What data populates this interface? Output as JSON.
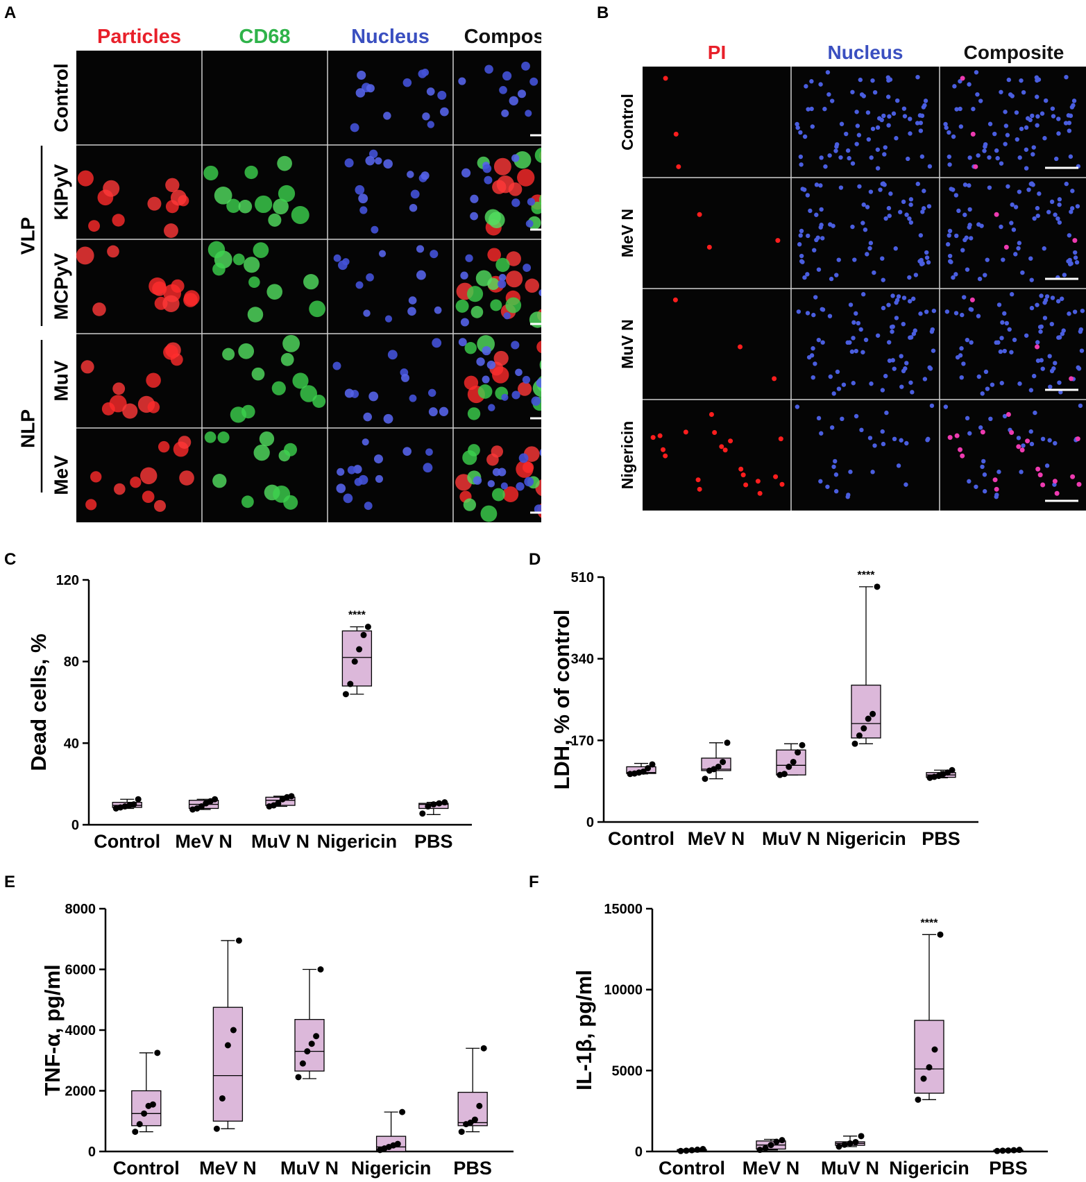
{
  "colors": {
    "red": "#e8202a",
    "green": "#2fb34a",
    "blue": "#3a4fc0",
    "black": "#111111",
    "box_fill": "#dcb8da",
    "micro_bg": "#050505"
  },
  "panelA": {
    "label": "A",
    "columns": [
      "Particles",
      "CD68",
      "Nucleus",
      "Composite"
    ],
    "rows": [
      "Control",
      "KIPyV",
      "MCPyV",
      "MuV",
      "MeV"
    ],
    "group_vlp": "VLP",
    "group_nlp": "NLP"
  },
  "panelB": {
    "label": "B",
    "columns": [
      "PI",
      "Nucleus",
      "Composite"
    ],
    "rows": [
      "Control",
      "MeV N",
      "MuV N",
      "Nigericin"
    ]
  },
  "chart_data": [
    {
      "panel": "C",
      "type": "box",
      "ylabel": "Dead cells, %",
      "ylim": [
        0,
        120
      ],
      "yticks": [
        0,
        40,
        80,
        120
      ],
      "categories": [
        "Control",
        "MeV N",
        "MuV N",
        "Nigericin",
        "PBS"
      ],
      "boxes": [
        {
          "min": 8,
          "q1": 8.5,
          "median": 9.5,
          "q3": 11,
          "max": 12.5,
          "points": [
            8,
            8.5,
            9,
            9.5,
            10,
            12.5
          ]
        },
        {
          "min": 7.5,
          "q1": 8,
          "median": 10,
          "q3": 12,
          "max": 12.5,
          "points": [
            7.5,
            8,
            9,
            10.5,
            11.5,
            12.5
          ]
        },
        {
          "min": 9,
          "q1": 9.5,
          "median": 12,
          "q3": 13.5,
          "max": 14,
          "points": [
            9,
            9.5,
            10.5,
            12.5,
            13.5,
            14
          ]
        },
        {
          "min": 64,
          "q1": 68,
          "median": 82,
          "q3": 95,
          "max": 97,
          "points": [
            64,
            69,
            80,
            86,
            93,
            97
          ]
        },
        {
          "min": 5,
          "q1": 8,
          "median": 10,
          "q3": 10.5,
          "max": 11,
          "points": [
            5.5,
            9,
            10,
            10.5,
            11
          ]
        }
      ],
      "annotation": {
        "category": "Nigericin",
        "text": "****"
      }
    },
    {
      "panel": "D",
      "type": "box",
      "ylabel": "LDH, % of control",
      "ylim": [
        0,
        510
      ],
      "yticks": [
        0,
        170,
        340,
        510
      ],
      "categories": [
        "Control",
        "MeV N",
        "MuV N",
        "Nigericin",
        "PBS"
      ],
      "boxes": [
        {
          "min": 100,
          "q1": 101,
          "median": 103,
          "q3": 115,
          "max": 122,
          "points": [
            100,
            101,
            103,
            105,
            112,
            120
          ]
        },
        {
          "min": 90,
          "q1": 107,
          "median": 110,
          "q3": 133,
          "max": 165,
          "points": [
            90,
            107,
            110,
            115,
            125,
            165
          ]
        },
        {
          "min": 98,
          "q1": 98,
          "median": 118,
          "q3": 150,
          "max": 163,
          "points": [
            98,
            100,
            115,
            125,
            145,
            160
          ]
        },
        {
          "min": 163,
          "q1": 175,
          "median": 205,
          "q3": 285,
          "max": 490,
          "points": [
            163,
            180,
            195,
            215,
            225,
            490
          ]
        },
        {
          "min": 92,
          "q1": 93,
          "median": 98,
          "q3": 103,
          "max": 108,
          "points": [
            92,
            94,
            96,
            100,
            103,
            108
          ]
        }
      ],
      "annotation": {
        "category": "Nigericin",
        "text": "****"
      }
    },
    {
      "panel": "E",
      "type": "box",
      "ylabel": "TNF-α, pg/ml",
      "ylim": [
        0,
        8000
      ],
      "yticks": [
        0,
        2000,
        4000,
        6000,
        8000
      ],
      "categories": [
        "Control",
        "MeV N",
        "MuV N",
        "Nigericin",
        "PBS"
      ],
      "boxes": [
        {
          "min": 650,
          "q1": 850,
          "median": 1250,
          "q3": 2000,
          "max": 3250,
          "points": [
            650,
            900,
            1250,
            1500,
            1550,
            3250
          ]
        },
        {
          "min": 750,
          "q1": 1000,
          "median": 2500,
          "q3": 4750,
          "max": 6950,
          "points": [
            750,
            1750,
            3500,
            4000,
            6950
          ]
        },
        {
          "min": 2400,
          "q1": 2650,
          "median": 3300,
          "q3": 4350,
          "max": 6000,
          "points": [
            2450,
            2900,
            3300,
            3550,
            3800,
            6000
          ]
        },
        {
          "min": 0,
          "q1": 0,
          "median": 150,
          "q3": 500,
          "max": 1300,
          "points": [
            50,
            100,
            150,
            200,
            250,
            1300
          ]
        },
        {
          "min": 650,
          "q1": 850,
          "median": 950,
          "q3": 1950,
          "max": 3400,
          "points": [
            650,
            900,
            950,
            1050,
            1500,
            3400
          ]
        }
      ]
    },
    {
      "panel": "F",
      "type": "box",
      "ylabel": "IL-1β, pg/ml",
      "ylim": [
        0,
        15000
      ],
      "yticks": [
        0,
        5000,
        10000,
        15000
      ],
      "categories": [
        "Control",
        "MeV N",
        "MuV N",
        "Nigericin",
        "PBS"
      ],
      "boxes": [
        {
          "min": 30,
          "q1": 40,
          "median": 80,
          "q3": 120,
          "max": 150,
          "points": [
            30,
            50,
            80,
            110,
            150
          ]
        },
        {
          "min": 100,
          "q1": 150,
          "median": 400,
          "q3": 650,
          "max": 750,
          "points": [
            100,
            200,
            400,
            600,
            700
          ]
        },
        {
          "min": 300,
          "q1": 380,
          "median": 500,
          "q3": 600,
          "max": 950,
          "points": [
            300,
            420,
            500,
            580,
            950
          ]
        },
        {
          "min": 3200,
          "q1": 3600,
          "median": 5100,
          "q3": 8100,
          "max": 13400,
          "points": [
            3200,
            4500,
            5200,
            6300,
            13400
          ]
        },
        {
          "min": 30,
          "q1": 40,
          "median": 60,
          "q3": 90,
          "max": 100,
          "points": [
            30,
            50,
            60,
            80,
            100
          ]
        }
      ],
      "annotation": {
        "category": "Nigericin",
        "text": "****"
      }
    }
  ]
}
